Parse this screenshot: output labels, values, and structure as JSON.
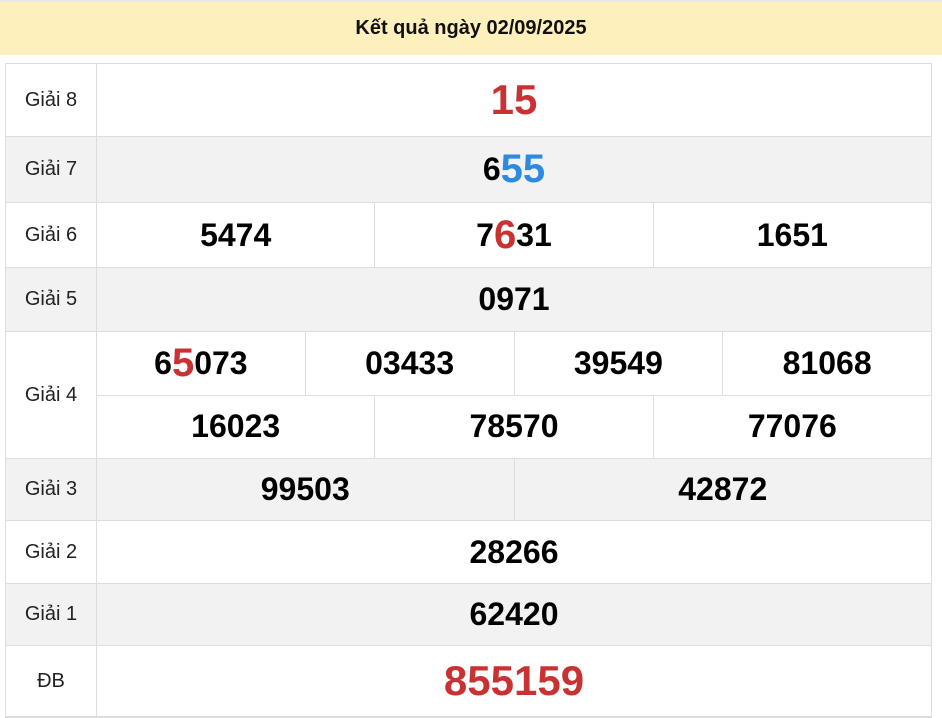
{
  "title": "Kết quả ngày 02/09/2025",
  "colors": {
    "red": "#c83232",
    "blue": "#2e8ae0",
    "header_bg": "#fdf0bd"
  },
  "rows": [
    {
      "label": "Giải 8",
      "lines": [
        [
          [
            {
              "t": "15"
            }
          ]
        ]
      ]
    },
    {
      "label": "Giải 7",
      "lines": [
        [
          [
            {
              "t": "6"
            },
            {
              "t": "55",
              "hl": "blue"
            }
          ]
        ]
      ]
    },
    {
      "label": "Giải 6",
      "lines": [
        [
          [
            {
              "t": "5474"
            }
          ],
          [
            {
              "t": "7"
            },
            {
              "t": "6",
              "hl": "red"
            },
            {
              "t": "31"
            }
          ],
          [
            {
              "t": "1651"
            }
          ]
        ]
      ]
    },
    {
      "label": "Giải 5",
      "lines": [
        [
          [
            {
              "t": "0971"
            }
          ]
        ]
      ]
    },
    {
      "label": "Giải 4",
      "lines": [
        [
          [
            {
              "t": "6"
            },
            {
              "t": "5",
              "hl": "red"
            },
            {
              "t": "073"
            }
          ],
          [
            {
              "t": "03433"
            }
          ],
          [
            {
              "t": "39549"
            }
          ],
          [
            {
              "t": "81068"
            }
          ]
        ],
        [
          [
            {
              "t": "16023"
            }
          ],
          [
            {
              "t": "78570"
            }
          ],
          [
            {
              "t": "77076"
            }
          ]
        ]
      ]
    },
    {
      "label": "Giải 3",
      "lines": [
        [
          [
            {
              "t": "99503"
            }
          ],
          [
            {
              "t": "42872"
            }
          ]
        ]
      ]
    },
    {
      "label": "Giải 2",
      "lines": [
        [
          [
            {
              "t": "28266"
            }
          ]
        ]
      ]
    },
    {
      "label": "Giải 1",
      "lines": [
        [
          [
            {
              "t": "62420"
            }
          ]
        ]
      ]
    },
    {
      "label": "ĐB",
      "lines": [
        [
          [
            {
              "t": "855159"
            }
          ]
        ]
      ]
    }
  ]
}
